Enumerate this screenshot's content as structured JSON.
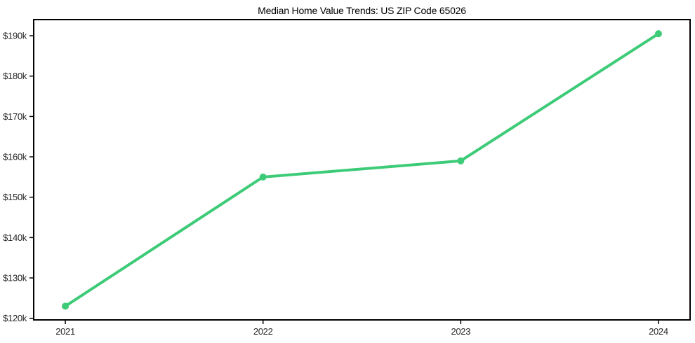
{
  "window": {
    "background_color": "#ffffff"
  },
  "chart_data": {
    "type": "line",
    "title": "Median Home Value Trends: US ZIP Code 65026",
    "xlabel": "",
    "ylabel": "",
    "categories": [
      "2021",
      "2022",
      "2023",
      "2024"
    ],
    "x_values": [
      2021,
      2022,
      2023,
      2024
    ],
    "series": [
      {
        "name": "Median Home Value",
        "values": [
          123000,
          155000,
          159000,
          190500
        ]
      }
    ],
    "x_ticks": [
      {
        "value": 2021,
        "label": "2021"
      },
      {
        "value": 2022,
        "label": "2022"
      },
      {
        "value": 2023,
        "label": "2023"
      },
      {
        "value": 2024,
        "label": "2024"
      }
    ],
    "y_ticks": [
      {
        "value": 120000,
        "label": "$120k"
      },
      {
        "value": 130000,
        "label": "$130k"
      },
      {
        "value": 140000,
        "label": "$140k"
      },
      {
        "value": 150000,
        "label": "$150k"
      },
      {
        "value": 160000,
        "label": "$160k"
      },
      {
        "value": 170000,
        "label": "$170k"
      },
      {
        "value": 180000,
        "label": "$180k"
      },
      {
        "value": 190000,
        "label": "$190k"
      }
    ],
    "xlim": [
      2020.84,
      2024.16
    ],
    "ylim": [
      119600,
      194000
    ],
    "grid": false,
    "legend": "none",
    "line_color": "#3ecb78",
    "marker_color": "#3ecb78",
    "marker_style": "circle",
    "axis_color": "#000000",
    "tick_label_color": "#262626",
    "title_color": "#000000",
    "plot_background_color": "#ffffff"
  }
}
